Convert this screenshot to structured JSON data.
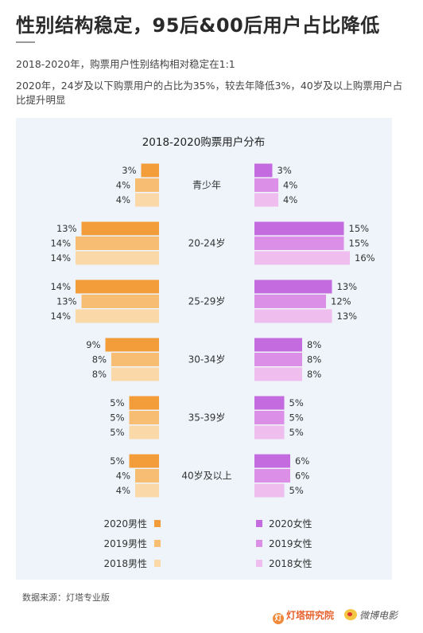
{
  "page": {
    "title": "性别结构稳定，95后&00后用户占比降低",
    "subtitle": "2018-2020年，购票用户性别结构相对稳定在1:1",
    "description": "2020年，24岁及以下购票用户的占比为35%，较去年降低3%，40岁及以上购票用户占比提升明显",
    "source": "数据来源：灯塔专业版",
    "logo_dengta": "灯塔研究院",
    "logo_weibo": "微博电影"
  },
  "chart_data": {
    "type": "bar",
    "orientation": "horizontal-butterfly",
    "title": "2018-2020购票用户分布",
    "categories": [
      "青少年",
      "20-24岁",
      "25-29岁",
      "30-34岁",
      "35-39岁",
      "40岁及以上"
    ],
    "unit": "%",
    "series": [
      {
        "name": "2020男性",
        "side": "left",
        "color": "#f29d3a",
        "values": [
          3,
          13,
          14,
          9,
          5,
          5
        ]
      },
      {
        "name": "2019男性",
        "side": "left",
        "color": "#f7bd73",
        "values": [
          4,
          14,
          13,
          8,
          5,
          4
        ]
      },
      {
        "name": "2018男性",
        "side": "left",
        "color": "#fbd8a8",
        "values": [
          4,
          14,
          14,
          8,
          5,
          4
        ]
      },
      {
        "name": "2020女性",
        "side": "right",
        "color": "#c56be0",
        "values": [
          3,
          15,
          13,
          8,
          5,
          6
        ]
      },
      {
        "name": "2019女性",
        "side": "right",
        "color": "#dc8fe6",
        "values": [
          4,
          15,
          12,
          8,
          5,
          6
        ]
      },
      {
        "name": "2018女性",
        "side": "right",
        "color": "#f0bdef",
        "values": [
          4,
          16,
          13,
          8,
          5,
          5
        ]
      }
    ],
    "legend": {
      "placement": "bottom"
    }
  }
}
